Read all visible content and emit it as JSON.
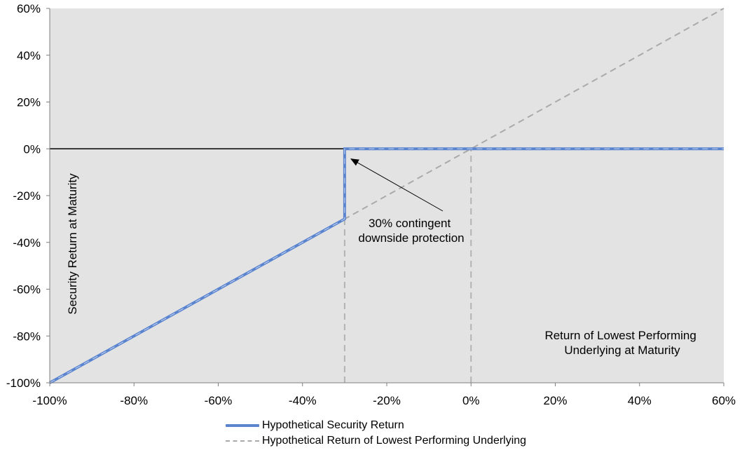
{
  "chart_data": {
    "type": "line",
    "xlabel": "Return of Lowest Performing Underlying at Maturity",
    "xlabel_lines": [
      "Return of Lowest Performing",
      "Underlying at Maturity"
    ],
    "ylabel": "Security Return at Maturity",
    "xlim": [
      -100,
      60
    ],
    "ylim": [
      -100,
      60
    ],
    "x_ticks": [
      -100,
      -80,
      -60,
      -40,
      -20,
      0,
      20,
      40,
      60
    ],
    "y_ticks": [
      -100,
      -80,
      -60,
      -40,
      -20,
      0,
      20,
      40,
      60
    ],
    "x_tick_labels": [
      "-100%",
      "-80%",
      "-60%",
      "-40%",
      "-20%",
      "0%",
      "20%",
      "40%",
      "60%"
    ],
    "y_tick_labels": [
      "-100%",
      "-80%",
      "-60%",
      "-40%",
      "-20%",
      "0%",
      "20%",
      "40%",
      "60%"
    ],
    "series": [
      {
        "name": "Hypothetical Security Return",
        "color": "#5b84cf",
        "style": "solid",
        "points": [
          [
            -100,
            -100
          ],
          [
            -30,
            -30
          ],
          [
            -30,
            0
          ],
          [
            60,
            0
          ]
        ]
      },
      {
        "name": "Hypothetical Return of Lowest Performing Underlying",
        "color": "#aaaaaa",
        "style": "dashed",
        "points": [
          [
            -100,
            -100
          ],
          [
            60,
            60
          ]
        ]
      }
    ],
    "reference_lines": [
      {
        "orientation": "vertical",
        "x": -30,
        "from": -100,
        "to": -30
      },
      {
        "orientation": "vertical",
        "x": 0,
        "from": -100,
        "to": 0
      }
    ],
    "annotation": {
      "lines": [
        "30% contingent",
        "downside protection"
      ],
      "arrow_target": [
        -30,
        -4
      ]
    },
    "grid": false,
    "legend_position": "bottom",
    "background_color": "#e3e3e3",
    "zero_line": true
  }
}
